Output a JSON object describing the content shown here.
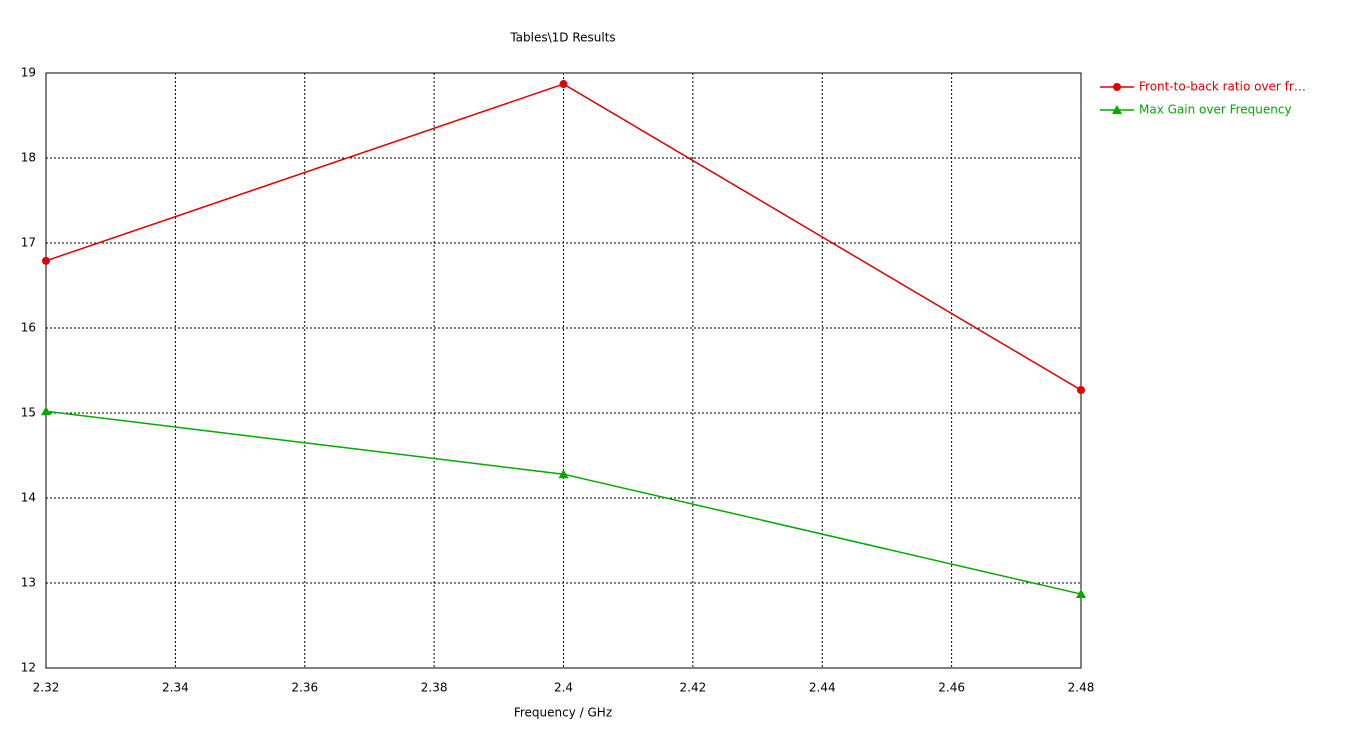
{
  "chart_data": {
    "type": "line",
    "title": "Tables\\1D Results",
    "x_label": "Frequency / GHz",
    "x": [
      2.32,
      2.4,
      2.48
    ],
    "series": [
      {
        "name": "Front-to-back ratio over fr…",
        "color": "#e00000",
        "marker": "circle",
        "values": [
          16.79,
          18.87,
          15.27
        ]
      },
      {
        "name": "Max Gain over Frequency",
        "color": "#00aa00",
        "marker": "triangle",
        "values": [
          15.02,
          14.28,
          12.87
        ]
      }
    ],
    "xlim": [
      2.32,
      2.48
    ],
    "xticks": [
      2.32,
      2.34,
      2.36,
      2.38,
      2.4,
      2.42,
      2.44,
      2.46,
      2.48
    ],
    "ylim": [
      12,
      19
    ],
    "yticks": [
      12,
      13,
      14,
      15,
      16,
      17,
      18,
      19
    ],
    "grid": true,
    "legend": "right"
  }
}
